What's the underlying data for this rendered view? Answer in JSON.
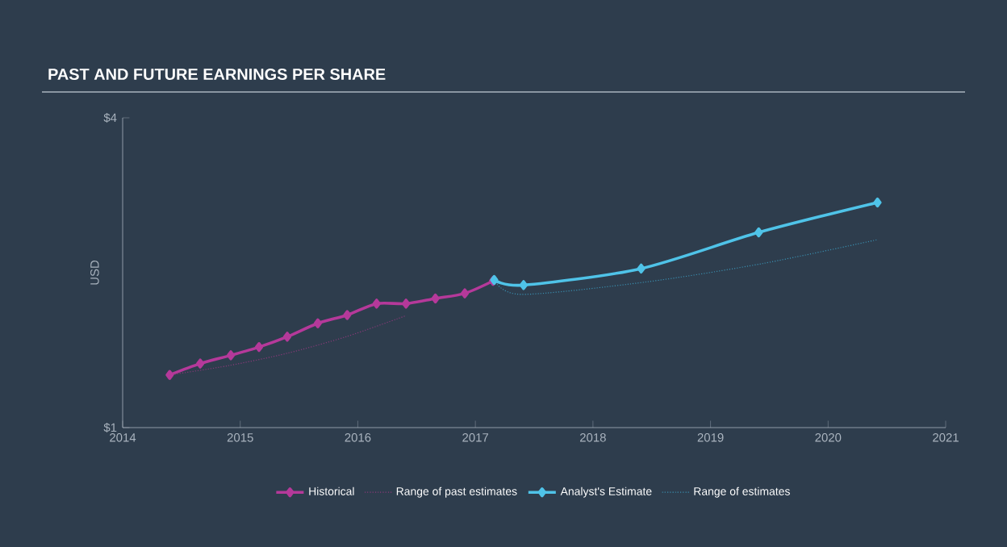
{
  "chart_data": {
    "type": "line",
    "title": "PAST AND FUTURE EARNINGS PER SHARE",
    "ylabel": "USD",
    "xlim": [
      2014,
      2021
    ],
    "xticks": [
      2014,
      2015,
      2016,
      2017,
      2018,
      2019,
      2020,
      2021
    ],
    "ylim": [
      1,
      4
    ],
    "yticks": [
      {
        "value": 1,
        "label": "$1"
      },
      {
        "value": 4,
        "label": "$4"
      }
    ],
    "legend": "bottom",
    "grid": false,
    "series": [
      {
        "name": "Historical",
        "color": "#b5399a",
        "marker": "diamond",
        "line_style": "solid",
        "x": [
          2014.4,
          2014.66,
          2014.92,
          2015.16,
          2015.4,
          2015.66,
          2015.91,
          2016.16,
          2016.41,
          2016.66,
          2016.91,
          2017.15
        ],
        "values": [
          1.51,
          1.62,
          1.7,
          1.78,
          1.88,
          2.01,
          2.09,
          2.2,
          2.2,
          2.25,
          2.3,
          2.42
        ]
      },
      {
        "name": "Range of past estimates",
        "color": "#8a3a7a",
        "marker": "none",
        "line_style": "dotted",
        "x": [
          2014.4,
          2014.9,
          2015.4,
          2015.9,
          2016.4
        ],
        "values": [
          1.51,
          1.6,
          1.72,
          1.88,
          2.08
        ]
      },
      {
        "name": "Analyst's Estimate",
        "color": "#4fc3e8",
        "marker": "diamond",
        "line_style": "solid",
        "x": [
          2017.16,
          2017.41,
          2018.41,
          2019.41,
          2020.42
        ],
        "values": [
          2.43,
          2.38,
          2.54,
          2.89,
          3.18
        ]
      },
      {
        "name": "Range of estimates",
        "color": "#3a8fb0",
        "marker": "none",
        "line_style": "dotted",
        "x": [
          2017.16,
          2017.39,
          2018.45,
          2019.45,
          2020.42
        ],
        "values": [
          2.43,
          2.29,
          2.41,
          2.59,
          2.82
        ]
      }
    ]
  }
}
